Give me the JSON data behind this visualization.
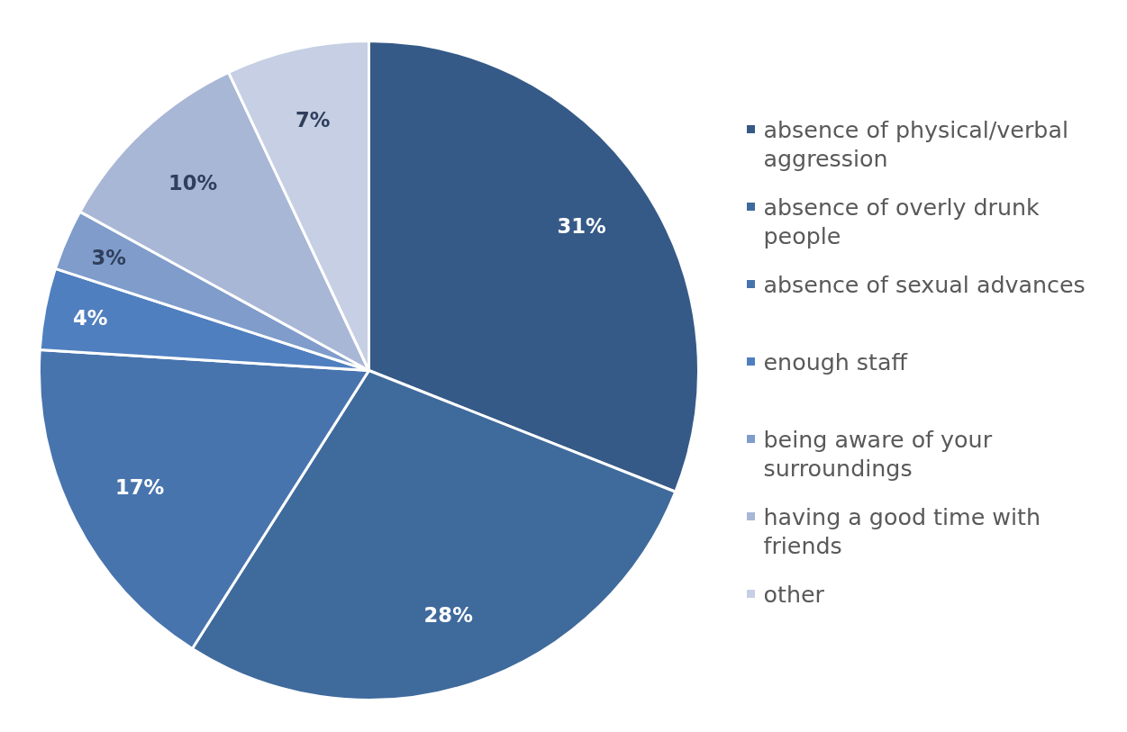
{
  "chart_data": {
    "type": "pie",
    "categories": [
      "absence of physical/verbal aggression",
      "absence of overly drunk people",
      "absence of sexual advances",
      "enough staff",
      "being aware of your surroundings",
      "having a good  time with friends",
      "other"
    ],
    "values": [
      31,
      28,
      17,
      4,
      3,
      10,
      7
    ],
    "colors": [
      "#365a87",
      "#3f6a9c",
      "#4874ae",
      "#4f7fbf",
      "#7f9ccb",
      "#a9b7d6",
      "#c6cfe3"
    ],
    "value_labels": [
      "31%",
      "28%",
      "17%",
      "4%",
      "3%",
      "10%",
      "7%"
    ],
    "legend": "right"
  }
}
